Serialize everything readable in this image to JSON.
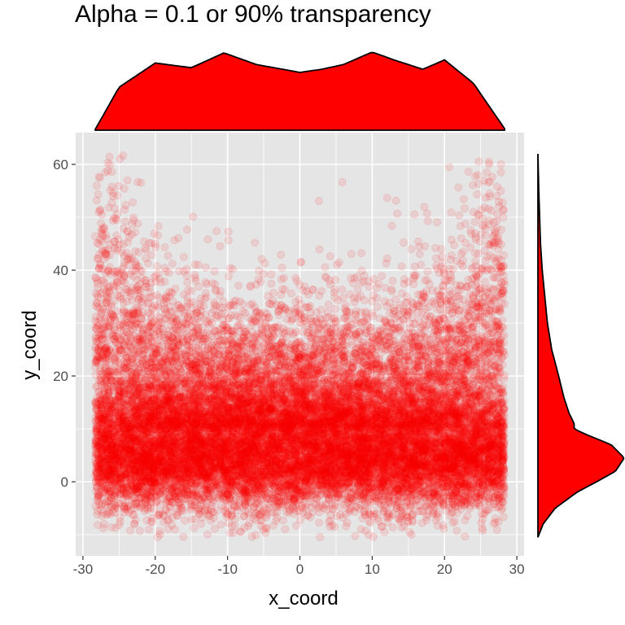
{
  "chart_data": {
    "type": "scatter",
    "title": "Alpha = 0.1 or 90% transparency",
    "xlabel": "x_coord",
    "ylabel": "y_coord",
    "xlim": [
      -31,
      31
    ],
    "ylim": [
      -14,
      66
    ],
    "x_ticks": [
      -30,
      -20,
      -10,
      0,
      10,
      20,
      30
    ],
    "y_ticks": [
      0,
      20,
      40,
      60
    ],
    "x_tick_labels": [
      "-30",
      "-20",
      "-10",
      "0",
      "10",
      "20",
      "30"
    ],
    "y_tick_labels": [
      "0",
      "20",
      "40",
      "60"
    ],
    "point_alpha": 0.1,
    "point_color": "#ff0000",
    "point_count_approx": 20000,
    "x_range": [
      -28.3,
      28.3
    ],
    "grid": true,
    "legend": "none",
    "marginal_x_density": {
      "x": [
        -28.3,
        -25,
        -20,
        -15,
        -10.5,
        -6,
        -3,
        0,
        3,
        6,
        10,
        13,
        17,
        20,
        24,
        28.3
      ],
      "density": [
        0.01,
        0.55,
        0.86,
        0.8,
        0.99,
        0.84,
        0.79,
        0.74,
        0.78,
        0.84,
        1.0,
        0.9,
        0.78,
        0.9,
        0.6,
        0.02
      ]
    },
    "marginal_y_density": {
      "y": [
        -10.5,
        -8,
        -5,
        -2,
        0,
        2,
        4.5,
        7,
        9,
        10,
        11,
        13,
        16,
        20,
        25,
        30,
        35,
        40,
        45,
        50,
        55,
        62
      ],
      "density": [
        0.0,
        0.06,
        0.2,
        0.45,
        0.68,
        0.9,
        1.0,
        0.85,
        0.55,
        0.42,
        0.42,
        0.36,
        0.3,
        0.24,
        0.16,
        0.11,
        0.08,
        0.05,
        0.03,
        0.02,
        0.01,
        0.0
      ]
    },
    "colors": {
      "panel_background": "#e5e5e5",
      "grid": "#ffffff",
      "density_fill": "#ff0000",
      "density_outline": "#000000"
    }
  }
}
